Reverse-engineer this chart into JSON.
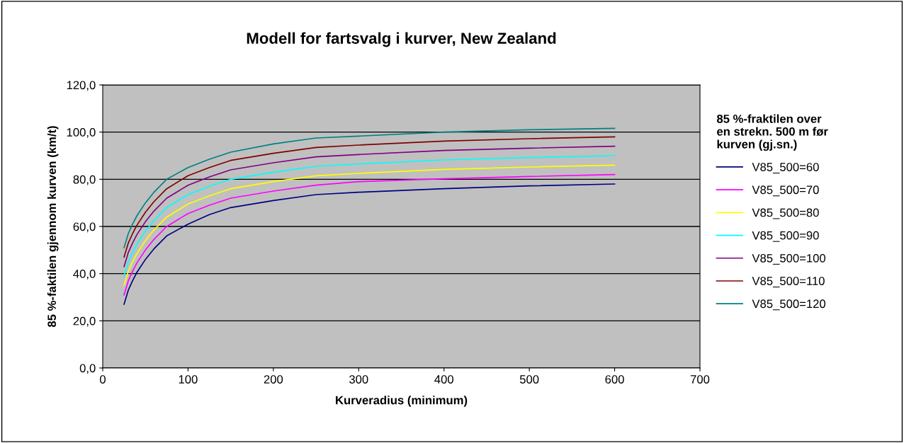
{
  "chart_data": {
    "type": "line",
    "title": "Modell for fartsvalg i kurver, New Zealand",
    "xlabel": "Kurveradius (minimum)",
    "ylabel": "85 %-faktilen gjennom kurven (km/t)",
    "legend_title": "85 %-fraktilen over\nen strekn. 500 m før\nkurven (gj.sn.)",
    "x": [
      25,
      30,
      35,
      40,
      50,
      60,
      75,
      100,
      125,
      150,
      200,
      250,
      300,
      400,
      500,
      600
    ],
    "series": [
      {
        "name": "V85_500=60",
        "color": "#000080",
        "values": [
          27,
          33,
          37,
          40.5,
          46,
          50.5,
          56,
          61,
          65,
          68,
          71,
          73.5,
          74.5,
          76,
          77.2,
          78
        ]
      },
      {
        "name": "V85_500=70",
        "color": "#ff00ff",
        "values": [
          31,
          37,
          41,
          44.5,
          50,
          54.5,
          60,
          65.5,
          69,
          72,
          75,
          77.5,
          79,
          80.2,
          81.2,
          82
        ]
      },
      {
        "name": "V85_500=80",
        "color": "#ffff00",
        "values": [
          35,
          41,
          45,
          48.5,
          54,
          58.5,
          64,
          69.5,
          73,
          76,
          79,
          81.5,
          82.5,
          84.2,
          85.2,
          86
        ]
      },
      {
        "name": "V85_500=90",
        "color": "#00ffff",
        "values": [
          39,
          45,
          49,
          52.5,
          58,
          62.5,
          68,
          73.5,
          77,
          80,
          83,
          85.5,
          86.5,
          88.2,
          89.2,
          90
        ]
      },
      {
        "name": "V85_500=100",
        "color": "#800080",
        "values": [
          43,
          49,
          53,
          56.5,
          62,
          66.5,
          72,
          77.5,
          81,
          84,
          87,
          89.5,
          90.5,
          92.2,
          93.2,
          94
        ]
      },
      {
        "name": "V85_500=110",
        "color": "#800000",
        "values": [
          47,
          53,
          57,
          60.5,
          66,
          70.5,
          76,
          81.5,
          85,
          88,
          91,
          93.5,
          94.5,
          96.2,
          97.2,
          98
        ]
      },
      {
        "name": "V85_500=120",
        "color": "#008080",
        "values": [
          51,
          57,
          61,
          64.5,
          70,
          74.5,
          80,
          85,
          88.5,
          91.5,
          95,
          97.5,
          98.3,
          100,
          101,
          101.6
        ]
      }
    ],
    "xlim": [
      0,
      700
    ],
    "xticks": [
      0,
      100,
      200,
      300,
      400,
      500,
      600,
      700
    ],
    "ylim": [
      0,
      120
    ],
    "yticks": [
      {
        "value": 0,
        "label": "0,0"
      },
      {
        "value": 20,
        "label": "20,0"
      },
      {
        "value": 40,
        "label": "40,0"
      },
      {
        "value": 60,
        "label": "60,0"
      },
      {
        "value": 80,
        "label": "80,0"
      },
      {
        "value": 100,
        "label": "100,0"
      },
      {
        "value": 120,
        "label": "120,0"
      }
    ],
    "grid": "y",
    "legend": "right",
    "marker": "none",
    "line_style": "solid"
  }
}
